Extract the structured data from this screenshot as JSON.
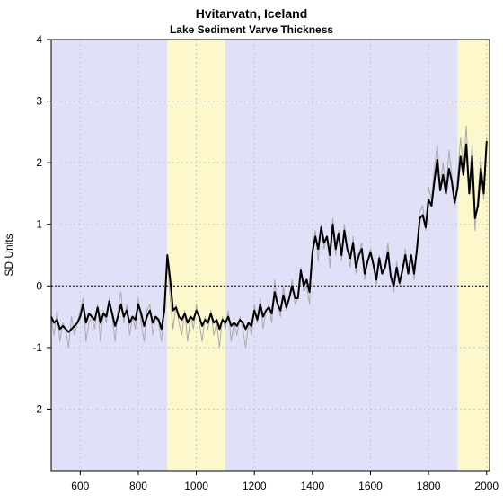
{
  "chart_data": {
    "type": "line",
    "title": "Hvitarvatn, Iceland",
    "subtitle": "Lake Sediment Varve Thickness",
    "xlabel": "",
    "ylabel": "SD Units",
    "xlim": [
      500,
      2010
    ],
    "ylim": [
      -3,
      4
    ],
    "xticks": [
      600,
      800,
      1000,
      1200,
      1400,
      1600,
      1800,
      2000
    ],
    "yticks": [
      -2,
      -1,
      0,
      1,
      2,
      3,
      4
    ],
    "grid": true,
    "reference_line": 0,
    "background_color": "#e0e0f8",
    "bands": [
      {
        "start": 900,
        "end": 1100,
        "color": "#fcf8cc"
      },
      {
        "start": 1900,
        "end": 2010,
        "color": "#fcf8cc"
      }
    ],
    "series": [
      {
        "name": "",
        "style": "annual",
        "color": "#aaaaaa",
        "x": [
          500,
          510,
          520,
          530,
          540,
          550,
          560,
          570,
          580,
          590,
          600,
          610,
          620,
          630,
          640,
          650,
          660,
          670,
          680,
          690,
          700,
          710,
          720,
          730,
          740,
          750,
          760,
          770,
          780,
          790,
          800,
          810,
          820,
          830,
          840,
          850,
          860,
          870,
          880,
          890,
          900,
          910,
          920,
          930,
          940,
          950,
          960,
          970,
          980,
          990,
          1000,
          1010,
          1020,
          1030,
          1040,
          1050,
          1060,
          1070,
          1080,
          1090,
          1100,
          1110,
          1120,
          1130,
          1140,
          1150,
          1160,
          1170,
          1180,
          1190,
          1200,
          1210,
          1220,
          1230,
          1240,
          1250,
          1260,
          1270,
          1280,
          1290,
          1300,
          1310,
          1320,
          1330,
          1340,
          1350,
          1360,
          1370,
          1380,
          1390,
          1400,
          1410,
          1420,
          1430,
          1440,
          1450,
          1460,
          1470,
          1480,
          1490,
          1500,
          1510,
          1520,
          1530,
          1540,
          1550,
          1560,
          1570,
          1580,
          1590,
          1600,
          1610,
          1620,
          1630,
          1640,
          1650,
          1660,
          1670,
          1680,
          1690,
          1700,
          1710,
          1720,
          1730,
          1740,
          1750,
          1760,
          1770,
          1780,
          1790,
          1800,
          1810,
          1820,
          1830,
          1840,
          1850,
          1860,
          1870,
          1880,
          1890,
          1900,
          1910,
          1920,
          1930,
          1940,
          1950,
          1960,
          1970,
          1980,
          1990,
          2000
        ],
        "y": [
          -0.5,
          -0.8,
          -0.4,
          -0.9,
          -0.6,
          -0.7,
          -1.0,
          -0.5,
          -0.8,
          -0.6,
          -0.4,
          -0.2,
          -0.9,
          -0.6,
          -0.5,
          -0.7,
          -0.3,
          -0.9,
          -0.4,
          -0.6,
          -0.2,
          -0.5,
          -0.9,
          -0.4,
          -0.1,
          -0.6,
          -0.3,
          -0.8,
          -0.5,
          -0.7,
          -0.2,
          -0.6,
          -0.9,
          -0.4,
          -0.3,
          -0.8,
          -0.5,
          -0.6,
          -0.9,
          -0.4,
          0.4,
          -0.2,
          -0.7,
          -0.3,
          -0.6,
          -0.8,
          -0.4,
          -0.9,
          -0.5,
          -0.7,
          -0.3,
          -0.6,
          -0.9,
          -0.5,
          -0.7,
          -0.4,
          -0.8,
          -0.6,
          -1.0,
          -0.5,
          -0.7,
          -0.4,
          -0.9,
          -0.6,
          -0.8,
          -0.5,
          -0.7,
          -1.0,
          -0.6,
          -0.8,
          -0.3,
          -0.6,
          -0.2,
          -0.7,
          -0.4,
          -0.3,
          -0.6,
          0.1,
          -0.3,
          -0.5,
          0.0,
          -0.4,
          -0.2,
          0.1,
          -0.3,
          -0.2,
          0.3,
          -0.1,
          0.0,
          -0.3,
          0.6,
          0.9,
          0.4,
          1.0,
          0.6,
          0.8,
          0.3,
          1.1,
          0.5,
          0.9,
          0.4,
          1.0,
          0.6,
          0.3,
          0.8,
          0.2,
          0.5,
          0.7,
          0.1,
          0.4,
          0.6,
          0.3,
          0.0,
          0.5,
          0.2,
          0.3,
          0.7,
          0.1,
          -0.1,
          0.4,
          0.0,
          0.3,
          0.6,
          0.2,
          0.5,
          0.1,
          0.6,
          1.2,
          1.3,
          0.9,
          1.6,
          1.4,
          1.9,
          2.3,
          1.6,
          2.0,
          1.5,
          2.2,
          1.8,
          1.3,
          1.8,
          2.4,
          1.9,
          2.6,
          1.6,
          2.3,
          0.9,
          1.5,
          2.1,
          1.4,
          2.4
        ]
      },
      {
        "name": "",
        "style": "smoothed",
        "color": "#000000",
        "x": [
          500,
          510,
          520,
          530,
          540,
          550,
          560,
          570,
          580,
          590,
          600,
          610,
          620,
          630,
          640,
          650,
          660,
          670,
          680,
          690,
          700,
          710,
          720,
          730,
          740,
          750,
          760,
          770,
          780,
          790,
          800,
          810,
          820,
          830,
          840,
          850,
          860,
          870,
          880,
          890,
          900,
          910,
          920,
          930,
          940,
          950,
          960,
          970,
          980,
          990,
          1000,
          1010,
          1020,
          1030,
          1040,
          1050,
          1060,
          1070,
          1080,
          1090,
          1100,
          1110,
          1120,
          1130,
          1140,
          1150,
          1160,
          1170,
          1180,
          1190,
          1200,
          1210,
          1220,
          1230,
          1240,
          1250,
          1260,
          1270,
          1280,
          1290,
          1300,
          1310,
          1320,
          1330,
          1340,
          1350,
          1360,
          1370,
          1380,
          1390,
          1400,
          1410,
          1420,
          1430,
          1440,
          1450,
          1460,
          1470,
          1480,
          1490,
          1500,
          1510,
          1520,
          1530,
          1540,
          1550,
          1560,
          1570,
          1580,
          1590,
          1600,
          1610,
          1620,
          1630,
          1640,
          1650,
          1660,
          1670,
          1680,
          1690,
          1700,
          1710,
          1720,
          1730,
          1740,
          1750,
          1760,
          1770,
          1780,
          1790,
          1800,
          1810,
          1820,
          1830,
          1840,
          1850,
          1860,
          1870,
          1880,
          1890,
          1900,
          1910,
          1920,
          1930,
          1940,
          1950,
          1960,
          1970,
          1980,
          1990,
          2000
        ],
        "y": [
          -0.5,
          -0.6,
          -0.55,
          -0.7,
          -0.65,
          -0.7,
          -0.75,
          -0.7,
          -0.65,
          -0.6,
          -0.5,
          -0.3,
          -0.6,
          -0.45,
          -0.5,
          -0.55,
          -0.35,
          -0.6,
          -0.45,
          -0.5,
          -0.25,
          -0.45,
          -0.65,
          -0.5,
          -0.3,
          -0.5,
          -0.4,
          -0.6,
          -0.5,
          -0.55,
          -0.3,
          -0.45,
          -0.65,
          -0.5,
          -0.4,
          -0.6,
          -0.5,
          -0.55,
          -0.7,
          -0.4,
          0.5,
          0.1,
          -0.4,
          -0.35,
          -0.5,
          -0.55,
          -0.45,
          -0.6,
          -0.5,
          -0.55,
          -0.4,
          -0.5,
          -0.65,
          -0.55,
          -0.6,
          -0.45,
          -0.6,
          -0.55,
          -0.7,
          -0.55,
          -0.6,
          -0.5,
          -0.65,
          -0.6,
          -0.65,
          -0.55,
          -0.6,
          -0.7,
          -0.6,
          -0.65,
          -0.4,
          -0.55,
          -0.3,
          -0.5,
          -0.4,
          -0.35,
          -0.45,
          -0.1,
          -0.3,
          -0.4,
          -0.15,
          -0.35,
          -0.2,
          0.0,
          -0.2,
          -0.2,
          0.25,
          0.0,
          0.1,
          -0.1,
          0.55,
          0.8,
          0.6,
          0.95,
          0.7,
          0.8,
          0.5,
          1.0,
          0.6,
          0.85,
          0.5,
          0.9,
          0.6,
          0.45,
          0.7,
          0.3,
          0.5,
          0.6,
          0.2,
          0.4,
          0.55,
          0.35,
          0.1,
          0.45,
          0.2,
          0.3,
          0.55,
          0.15,
          0.0,
          0.3,
          0.05,
          0.25,
          0.5,
          0.2,
          0.5,
          0.2,
          0.6,
          1.1,
          1.15,
          0.95,
          1.4,
          1.3,
          1.7,
          2.05,
          1.55,
          1.8,
          1.5,
          1.9,
          1.7,
          1.35,
          1.6,
          2.1,
          1.8,
          2.3,
          1.5,
          2.1,
          1.1,
          1.3,
          1.9,
          1.5,
          2.35
        ]
      }
    ]
  }
}
